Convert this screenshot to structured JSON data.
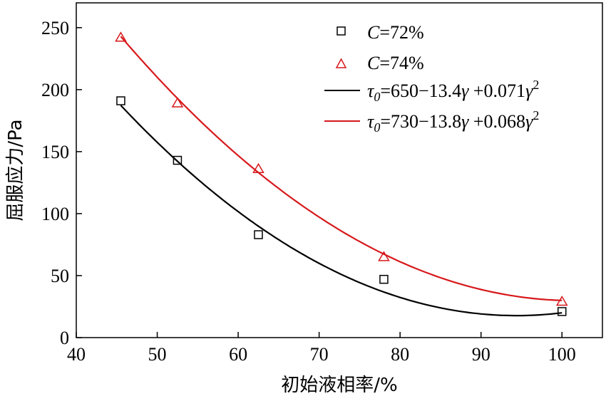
{
  "chart_data": {
    "type": "scatter",
    "xlabel": "初始液相率/%",
    "ylabel": "屈服应力/Pa",
    "xlim": [
      40,
      105
    ],
    "ylim": [
      0,
      270
    ],
    "xticks": [
      40,
      50,
      60,
      70,
      80,
      90,
      100
    ],
    "yticks": [
      0,
      50,
      100,
      150,
      200,
      250
    ],
    "grid": false,
    "legend_position": "top-right",
    "series": [
      {
        "name": "C=72%",
        "kind": "markers",
        "marker": "square",
        "color": "#000000",
        "x": [
          45.5,
          52.5,
          62.5,
          78,
          100
        ],
        "y": [
          191,
          143,
          83,
          47,
          21
        ]
      },
      {
        "name": "C=74%",
        "kind": "markers",
        "marker": "triangle",
        "color": "#d7191c",
        "x": [
          45.5,
          52.5,
          62.5,
          78,
          100
        ],
        "y": [
          242,
          189,
          136,
          65,
          29
        ]
      },
      {
        "name": "τ0=650−13.4γ +0.071γ2",
        "kind": "fit",
        "color": "#000000",
        "coefficients": [
          650,
          -13.4,
          0.071
        ],
        "x_range": [
          45.5,
          100
        ]
      },
      {
        "name": "τ0=730−13.8γ +0.068γ2",
        "kind": "fit",
        "color": "#d7191c",
        "coefficients": [
          730,
          -13.8,
          0.068
        ],
        "x_range": [
          45.5,
          100
        ]
      }
    ],
    "legend": {
      "s1": {
        "var": "C",
        "rest": "=72%"
      },
      "s2": {
        "var": "C",
        "rest": "=74%"
      },
      "f1": {
        "tau": "τ",
        "sub": "0",
        "a": "=650−13.4",
        "g1": "γ",
        "b": " +0.071",
        "g2": "γ",
        "sup": "2"
      },
      "f2": {
        "tau": "τ",
        "sub": "0",
        "a": "=730−13.8",
        "g1": "γ",
        "b": " +0.068",
        "g2": "γ",
        "sup": "2"
      }
    }
  }
}
